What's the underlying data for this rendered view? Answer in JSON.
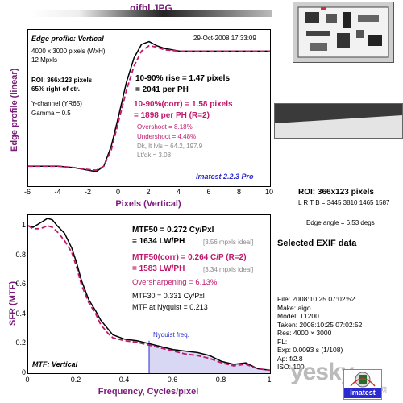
{
  "file_title": "gjfbl.JPG",
  "top_panel": {
    "heading": "Edge profile: Vertical",
    "date": "29-Oct-2008 17:33:09",
    "info_lines": [
      "4000 x 3000 pixels (WxH)",
      "12 Mpxls"
    ],
    "roi_line": "ROI: 366x123 pixels",
    "pct_line": "65% right of ctr.",
    "channel_line": "Y-channel (YR65)",
    "gamma_line": "Gamma = 0.5",
    "rise_line1": "10-90% rise = 1.47 pixels",
    "rise_line2": "= 2041 per PH",
    "corr_line1": "10-90%(corr) = 1.58 pixels",
    "corr_line2": "= 1898 per PH  (R=2)",
    "overshoot": "Overshoot = 8.18%",
    "undershoot": "Undershoot = 4.48%",
    "dk_lt": "Dk, lt lvls = 64.2, 197.9",
    "lt_dk": "Lt/dk = 3.08",
    "brand": "Imatest 2.2.3 Pro",
    "ylabel": "Edge profile (linear)",
    "xlabel": "Pixels (Vertical)",
    "xticks": [
      "-6",
      "-4",
      "-2",
      "0",
      "2",
      "4",
      "6",
      "8",
      "10"
    ]
  },
  "bottom_panel": {
    "mtf50_line1": "MTF50 = 0.272 Cy/Pxl",
    "mtf50_line2": "= 1634 LW/PH",
    "mtf50_ideal": "[3.56 mpxls ideal]",
    "mtf50c_line1": "MTF50(corr) = 0.264 C/P  (R=2)",
    "mtf50c_line2": "= 1583 LW/PH",
    "mtf50c_ideal": "[3.34 mpxls ideal]",
    "oversharpening": "Oversharpening = 6.13%",
    "mtf30": "MTF30 = 0.331 Cy/Pxl",
    "mtf_nyq": "MTF at Nyquist = 0.213",
    "nyquist_label": "Nyquist freq.",
    "heading": "MTF: Vertical",
    "ylabel": "SFR (MTF)",
    "xlabel": "Frequency, Cycles/pixel",
    "xticks": [
      "0",
      "0.2",
      "0.4",
      "0.6",
      "0.8",
      "1"
    ],
    "yticks": [
      "0",
      "0.2",
      "0.4",
      "0.6",
      "0.8",
      "1"
    ]
  },
  "right_panel": {
    "roi_title": "ROI: 366x123 pixels",
    "lrtb": "L R  T B = 3445 3810  1465 1587",
    "edge_angle": "Edge angle = 6.53 degs",
    "exif_title": "Selected EXIF data",
    "exif": [
      "File:  2008:10:25 07:02:52",
      "Make:  aigo",
      "Model:  T1200",
      "Taken:  2008:10:25 07:02:52",
      "Res:   4000 × 3000",
      "FL:",
      "Exp:   0.0093 s  (1/108)",
      "Ap:    f/2.8",
      "ISO:   100"
    ],
    "watermark": "yesky",
    "watermark_sub": "天极网",
    "logo_text": "Imatest"
  },
  "colors": {
    "accent": "#7a1a7a",
    "magenta": "#c0186a",
    "blue": "#2a2ad0",
    "fill": "#d8d8f4"
  },
  "chart_data": [
    {
      "type": "line",
      "title": "Edge profile: Vertical",
      "xlabel": "Pixels (Vertical)",
      "ylabel": "Edge profile (linear)",
      "xlim": [
        -6,
        10
      ],
      "ylim": [
        0,
        1
      ],
      "series": [
        {
          "x": [
            -6,
            -5,
            -4,
            -3,
            -2,
            -1.5,
            -1,
            -0.5,
            0,
            0.5,
            1,
            1.5,
            2,
            2.5,
            3,
            4,
            5,
            6,
            7,
            8,
            9,
            10
          ],
          "y": [
            0.1,
            0.1,
            0.1,
            0.09,
            0.07,
            0.06,
            0.1,
            0.25,
            0.48,
            0.72,
            0.9,
            1.0,
            1.02,
            0.99,
            0.97,
            0.95,
            0.95,
            0.95,
            0.95,
            0.95,
            0.95,
            0.95
          ]
        },
        {
          "x": [
            -6,
            -5,
            -4,
            -3,
            -2,
            -1.5,
            -1,
            -0.5,
            0,
            0.5,
            1,
            1.5,
            2,
            2.5,
            3,
            4,
            5,
            6,
            7,
            8,
            9,
            10
          ],
          "y": [
            0.1,
            0.1,
            0.1,
            0.09,
            0.075,
            0.07,
            0.1,
            0.22,
            0.44,
            0.66,
            0.84,
            0.95,
            0.99,
            0.98,
            0.96,
            0.95,
            0.95,
            0.95,
            0.95,
            0.95,
            0.95,
            0.95
          ]
        }
      ]
    },
    {
      "type": "line",
      "title": "MTF: Vertical",
      "xlabel": "Frequency, Cycles/pixel",
      "ylabel": "SFR (MTF)",
      "xlim": [
        0,
        1
      ],
      "ylim": [
        0,
        1.05
      ],
      "series": [
        {
          "x": [
            0,
            0.02,
            0.05,
            0.08,
            0.1,
            0.12,
            0.15,
            0.18,
            0.2,
            0.22,
            0.25,
            0.28,
            0.3,
            0.33,
            0.35,
            0.4,
            0.45,
            0.5,
            0.55,
            0.6,
            0.65,
            0.7,
            0.75,
            0.8,
            0.85,
            0.9,
            0.95,
            1.0
          ],
          "y": [
            1.0,
            0.99,
            1.02,
            1.05,
            1.04,
            1.0,
            0.95,
            0.85,
            0.75,
            0.63,
            0.5,
            0.42,
            0.36,
            0.3,
            0.26,
            0.23,
            0.22,
            0.2,
            0.18,
            0.16,
            0.15,
            0.14,
            0.12,
            0.08,
            0.06,
            0.07,
            0.03,
            0.02
          ]
        },
        {
          "x": [
            0,
            0.02,
            0.05,
            0.08,
            0.1,
            0.12,
            0.15,
            0.18,
            0.2,
            0.22,
            0.25,
            0.28,
            0.3,
            0.33,
            0.35,
            0.4,
            0.45,
            0.5,
            0.55,
            0.6,
            0.65,
            0.7,
            0.75,
            0.8,
            0.85,
            0.9,
            0.95,
            1.0
          ],
          "y": [
            1.0,
            0.98,
            0.98,
            1.0,
            0.99,
            0.96,
            0.9,
            0.82,
            0.72,
            0.6,
            0.48,
            0.4,
            0.33,
            0.27,
            0.24,
            0.22,
            0.21,
            0.19,
            0.17,
            0.15,
            0.13,
            0.12,
            0.1,
            0.07,
            0.05,
            0.06,
            0.03,
            0.02
          ]
        }
      ],
      "nyquist_x": 0.5
    }
  ]
}
